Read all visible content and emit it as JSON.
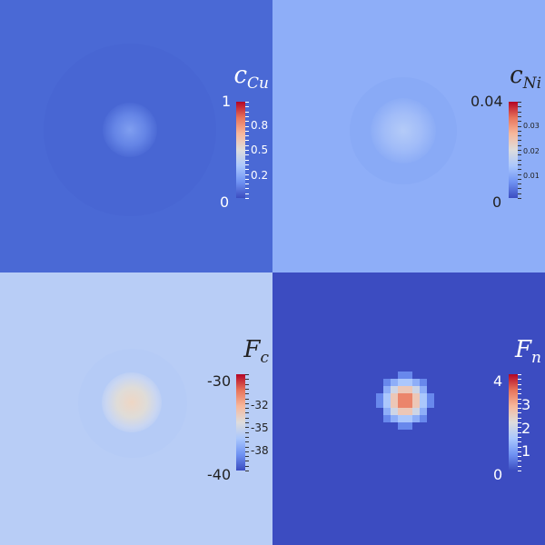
{
  "chart_data": [
    {
      "type": "heatmap",
      "title_base": "c",
      "title_sub": "Cu",
      "range": [
        0,
        1
      ],
      "ticks": [
        "1",
        "0.8",
        "0.5",
        "0.2",
        "0"
      ],
      "colormap": "coolwarm",
      "background": "#4a69d5"
    },
    {
      "type": "heatmap",
      "title_base": "c",
      "title_sub": "Ni",
      "range": [
        0,
        0.04
      ],
      "ticks": [
        "0.04",
        "0.03",
        "0.02",
        "0.01",
        "0"
      ],
      "colormap": "coolwarm",
      "background": "#8eaef8"
    },
    {
      "type": "heatmap",
      "title_base": "F",
      "title_sub": "c",
      "range": [
        -40,
        -30
      ],
      "ticks": [
        "-30",
        "-32",
        "-35",
        "-38",
        "-40"
      ],
      "colormap": "coolwarm",
      "background": "#b8cdf6"
    },
    {
      "type": "heatmap",
      "title_base": "F",
      "title_sub": "n",
      "range": [
        0,
        4
      ],
      "ticks": [
        "4",
        "3",
        "2",
        "1",
        "0"
      ],
      "colormap": "coolwarm",
      "background": "#3c4cc1"
    }
  ]
}
